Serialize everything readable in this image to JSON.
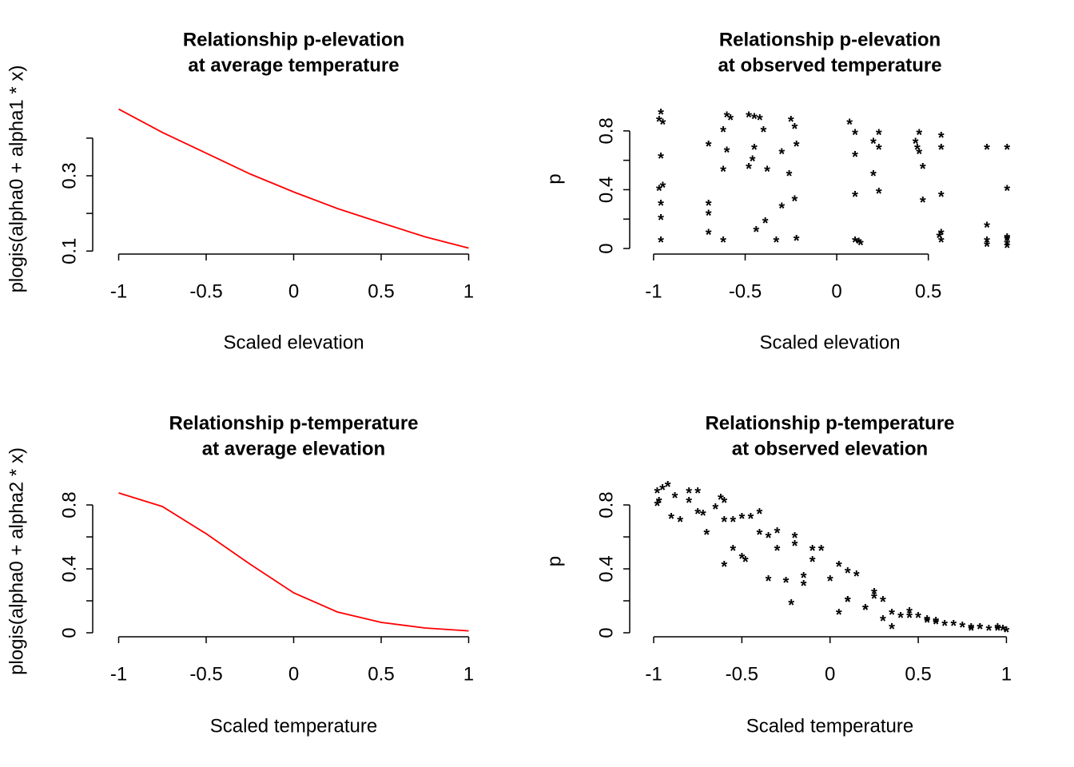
{
  "chart_data": [
    {
      "type": "line",
      "title": [
        "Relationship p-elevation",
        "at average temperature"
      ],
      "xlabel": "Scaled elevation",
      "ylabel": "plogis(alpha0 + alpha1 * x)",
      "x": [
        -1,
        -0.75,
        -0.5,
        -0.25,
        0,
        0.25,
        0.5,
        0.75,
        1
      ],
      "values": [
        0.477,
        0.415,
        0.36,
        0.305,
        0.257,
        0.213,
        0.175,
        0.138,
        0.108
      ],
      "color": "#ff0000",
      "xlim": [
        -1.08,
        1.08
      ],
      "xticks": [
        -1.0,
        -0.5,
        0.0,
        0.5,
        1.0
      ],
      "ylim": [
        0.092,
        0.491
      ],
      "yticks": [
        0.1,
        0.3
      ],
      "yminorticks": [
        0.2,
        0.4
      ]
    },
    {
      "type": "scatter",
      "title": [
        "Relationship p-elevation",
        "at observed temperature"
      ],
      "xlabel": "Scaled elevation",
      "ylabel": "p",
      "marker": "*",
      "series": [
        {
          "color": "#000000",
          "x": [
            -0.96,
            -0.95,
            -0.62,
            -0.48,
            -0.42,
            -0.25,
            0.1,
            0.23,
            0.57,
            0.82,
            0.93,
            -0.39
          ],
          "values": [
            0.05,
            0.42,
            0.53,
            0.55,
            0.88,
            0.87,
            0.63,
            0.68,
            0.68,
            0.68,
            0.07,
            0.18
          ]
        },
        {
          "color": "#ff0000",
          "x": [
            -0.97,
            -0.7,
            -0.6,
            -0.45,
            -0.38,
            -0.3,
            0.07,
            0.1,
            0.47,
            0.57,
            0.82,
            0.93,
            -0.22
          ],
          "values": [
            0.4,
            0.7,
            0.9,
            0.89,
            0.53,
            0.65,
            0.85,
            0.36,
            0.32,
            0.1,
            0.02,
            0.01,
            0.06
          ]
        },
        {
          "color": "#00cd00",
          "x": [
            -0.96,
            -0.7,
            -0.58,
            -0.46,
            -0.33,
            -0.23,
            0.1,
            0.2,
            0.23,
            0.43,
            0.57,
            0.93,
            -0.96
          ],
          "values": [
            0.92,
            0.3,
            0.88,
            0.6,
            0.05,
            0.82,
            0.78,
            0.5,
            0.78,
            0.72,
            0.76,
            0.4,
            0.62
          ]
        },
        {
          "color": "#0000ff",
          "x": [
            -0.95,
            -0.62,
            -0.48,
            -0.4,
            -0.23,
            0.1,
            0.2,
            0.45,
            0.57,
            0.82,
            0.93,
            -0.96,
            0.47
          ],
          "values": [
            0.85,
            0.05,
            0.9,
            0.8,
            0.33,
            0.05,
            0.72,
            0.78,
            0.36,
            0.15,
            0.68,
            0.2,
            0.55
          ]
        },
        {
          "color": "#00ffff",
          "x": [
            -0.97,
            -0.7,
            -0.62,
            -0.44,
            -0.26,
            0.12,
            0.23,
            0.44,
            0.56,
            0.93
          ],
          "values": [
            0.87,
            0.1,
            0.8,
            0.12,
            0.5,
            0.04,
            0.38,
            0.68,
            0.08,
            0.06
          ]
        },
        {
          "color": "#ff00ff",
          "x": [
            -0.96,
            -0.7,
            -0.6,
            -0.45,
            -0.3,
            -0.22,
            0.13,
            0.45,
            0.57,
            0.82,
            0.93
          ],
          "values": [
            0.3,
            0.23,
            0.66,
            0.68,
            0.28,
            0.7,
            0.03,
            0.65,
            0.05,
            0.05,
            0.03
          ]
        }
      ],
      "xlim": [
        -1.065,
        0.99
      ],
      "xticks": [
        -1.0,
        -0.5,
        0.0,
        0.5
      ],
      "ylim": [
        -0.038,
        0.984
      ],
      "yticks": [
        0.0,
        0.4,
        0.8
      ],
      "yminorticks": [
        0.2,
        0.6
      ]
    },
    {
      "type": "line",
      "title": [
        "Relationship p-temperature",
        "at average elevation"
      ],
      "xlabel": "Scaled temperature",
      "ylabel": "plogis(alpha0 + alpha2 * x)",
      "x": [
        -1,
        -0.75,
        -0.5,
        -0.25,
        0,
        0.25,
        0.5,
        0.75,
        1
      ],
      "values": [
        0.875,
        0.79,
        0.62,
        0.43,
        0.25,
        0.13,
        0.065,
        0.03,
        0.012
      ],
      "color": "#ff0000",
      "xlim": [
        -1.08,
        1.08
      ],
      "xticks": [
        -1.0,
        -0.5,
        0.0,
        0.5,
        1.0
      ],
      "ylim": [
        -0.025,
        0.92
      ],
      "yticks": [
        0.0,
        0.4,
        0.8
      ],
      "yminorticks": [
        0.2,
        0.6
      ]
    },
    {
      "type": "scatter",
      "title": [
        "Relationship p-temperature",
        "at observed elevation"
      ],
      "xlabel": "Scaled temperature",
      "ylabel": "p",
      "marker": "*",
      "series": [
        {
          "color": "#000000",
          "x": [
            -0.98,
            -0.85,
            -0.75,
            -0.6,
            -0.4,
            -0.2,
            -0.1,
            0.05,
            0.15,
            0.3,
            0.45,
            0.6,
            0.8,
            0.98
          ],
          "values": [
            0.88,
            0.7,
            0.88,
            0.82,
            0.62,
            0.6,
            0.52,
            0.42,
            0.36,
            0.2,
            0.13,
            0.07,
            0.03,
            0.02
          ]
        },
        {
          "color": "#ff0000",
          "x": [
            -0.95,
            -0.8,
            -0.65,
            -0.5,
            -0.35,
            -0.25,
            -0.2,
            0.1,
            0.3,
            0.5,
            0.7,
            0.9
          ],
          "values": [
            0.9,
            0.82,
            0.78,
            0.72,
            0.33,
            0.32,
            0.55,
            0.2,
            0.08,
            0.1,
            0.05,
            0.02
          ]
        },
        {
          "color": "#00cd00",
          "x": [
            -0.92,
            -0.75,
            -0.6,
            -0.5,
            -0.45,
            -0.3,
            -0.1,
            0.0,
            0.2,
            0.35,
            0.55,
            0.8,
            0.95
          ],
          "values": [
            0.92,
            0.75,
            0.42,
            0.47,
            0.72,
            0.63,
            0.45,
            0.33,
            0.15,
            0.03,
            0.08,
            0.02,
            0.02
          ]
        },
        {
          "color": "#0000ff",
          "x": [
            -0.98,
            -0.88,
            -0.62,
            -0.55,
            -0.4,
            -0.22,
            -0.05,
            0.1,
            0.25,
            0.4,
            0.6,
            0.85
          ],
          "values": [
            0.8,
            0.85,
            0.84,
            0.52,
            0.75,
            0.18,
            0.52,
            0.2,
            0.25,
            0.1,
            0.06,
            0.03
          ]
        },
        {
          "color": "#00ffff",
          "x": [
            -0.97,
            -0.8,
            -0.7,
            -0.55,
            -0.35,
            -0.15,
            0.05,
            0.2,
            0.35,
            0.55,
            0.75,
            0.95
          ],
          "values": [
            0.82,
            0.88,
            0.62,
            0.7,
            0.6,
            0.35,
            0.12,
            0.15,
            0.12,
            0.07,
            0.04,
            0.03
          ]
        },
        {
          "color": "#ff00ff",
          "x": [
            -0.9,
            -0.72,
            -0.6,
            -0.48,
            -0.3,
            -0.15,
            0.1,
            0.25,
            0.45,
            0.65,
            0.85,
            1.0
          ],
          "values": [
            0.72,
            0.74,
            0.7,
            0.45,
            0.52,
            0.3,
            0.38,
            0.22,
            0.1,
            0.05,
            0.03,
            0.01
          ]
        }
      ],
      "xlim": [
        -1.068,
        1.066
      ],
      "xticks": [
        -1.0,
        -0.5,
        0.0,
        0.5,
        1.0
      ],
      "ylim": [
        -0.025,
        0.92
      ],
      "yticks": [
        0.0,
        0.4,
        0.8
      ],
      "yminorticks": [
        0.2,
        0.6
      ]
    }
  ]
}
